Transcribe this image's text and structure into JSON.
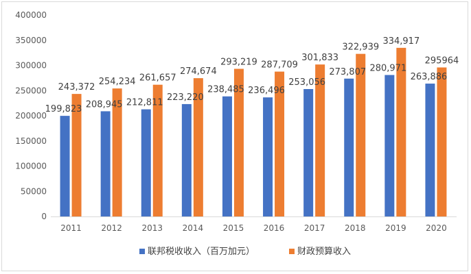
{
  "chart_data": {
    "type": "bar",
    "categories": [
      "2011",
      "2012",
      "2013",
      "2014",
      "2015",
      "2016",
      "2017",
      "2018",
      "2019",
      "2020"
    ],
    "series": [
      {
        "name": "联邦税收收入（百万加元）",
        "values": [
          199823,
          208945,
          212811,
          223220,
          238485,
          236496,
          253056,
          273807,
          280971,
          263886
        ],
        "labels": [
          "199,823",
          "208,945",
          "212,811",
          "223,220",
          "238,485",
          "236,496",
          "253,056",
          "273,807",
          "280,971",
          "263,886"
        ],
        "color": "#4472C4"
      },
      {
        "name": "财政预算收入",
        "values": [
          243372,
          254234,
          261657,
          274674,
          293219,
          287709,
          301833,
          322939,
          334917,
          295964
        ],
        "labels": [
          "243,372",
          "254,234",
          "261,657",
          "274,674",
          "293,219",
          "287,709",
          "301,833",
          "322,939",
          "334,917",
          "295964"
        ],
        "color": "#ED7D31"
      }
    ],
    "yticks": [
      "0",
      "50000",
      "100000",
      "150000",
      "200000",
      "250000",
      "300000",
      "350000",
      "400000"
    ],
    "ylim": [
      0,
      400000
    ],
    "legend_position": "bottom",
    "grid": false
  }
}
